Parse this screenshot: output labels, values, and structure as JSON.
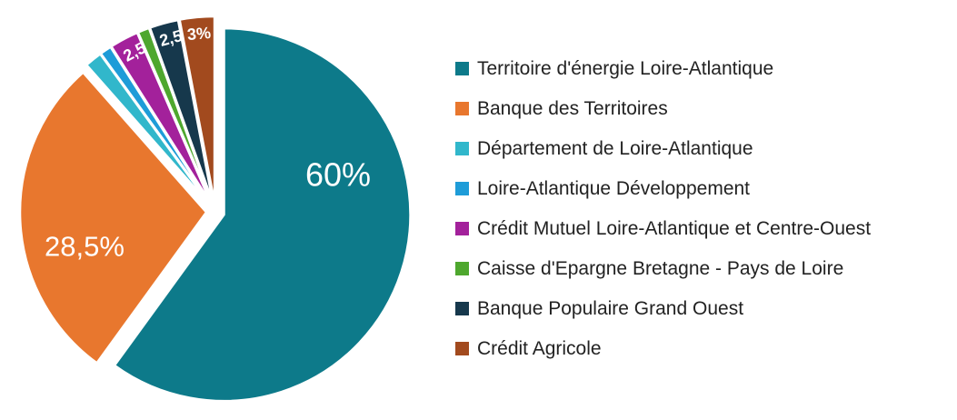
{
  "chart_data": {
    "type": "pie",
    "title": "",
    "legend_position": "right",
    "start_angle_deg": 0,
    "direction": "clockwise",
    "exploded": true,
    "background": "#ffffff",
    "data_label_color": "#ffffff",
    "legend_text_color": "#222222",
    "slices": [
      {
        "label": "Territoire d'énergie Loire-Atlantique",
        "value": 60,
        "color": "#0d7a8a",
        "data_label": "60%"
      },
      {
        "label": "Banque des Territoires",
        "value": 28.5,
        "color": "#e8772e",
        "data_label": "28,5%"
      },
      {
        "label": "Département de Loire-Atlantique",
        "value": 1.5,
        "color": "#31b7cb",
        "data_label": ""
      },
      {
        "label": "Loire-Atlantique Développement",
        "value": 1,
        "color": "#1e9cd8",
        "data_label": ""
      },
      {
        "label": "Crédit Mutuel Loire-Atlantique et Centre-Ouest",
        "value": 2.5,
        "color": "#a3219b",
        "data_label": "2,5"
      },
      {
        "label": "Caisse d'Epargne Bretagne - Pays de Loire",
        "value": 1,
        "color": "#4ea72e",
        "data_label": ""
      },
      {
        "label": "Banque Populaire Grand Ouest",
        "value": 2.5,
        "color": "#16384c",
        "data_label": "2,5"
      },
      {
        "label": "Crédit Agricole",
        "value": 3,
        "color": "#a24a1e",
        "data_label": "3%"
      }
    ]
  }
}
